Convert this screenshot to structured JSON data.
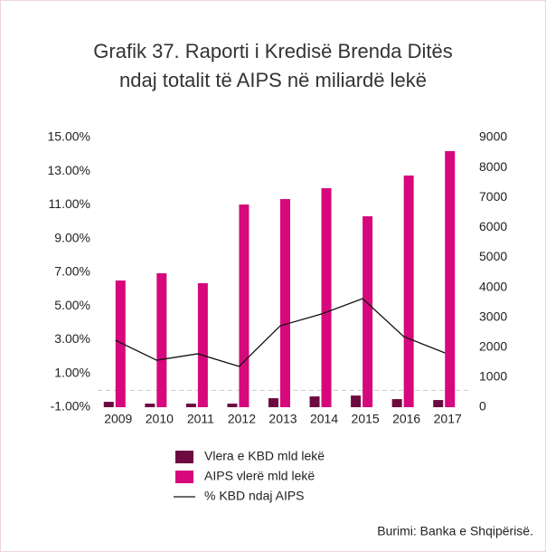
{
  "chart_data": {
    "type": "bar",
    "title": "Grafik 37. Raporti i Kredisë Brenda Ditës",
    "subtitle": "ndaj totalit të AIPS në miliardë lekë",
    "categories": [
      "2009",
      "2010",
      "2011",
      "2012",
      "2013",
      "2014",
      "2015",
      "2016",
      "2017"
    ],
    "series": [
      {
        "name": "Vlera e KBD mld lekë",
        "color": "#6d0a3f",
        "type": "bar",
        "axis": "y2",
        "values": [
          180,
          120,
          120,
          120,
          300,
          360,
          390,
          270,
          240
        ]
      },
      {
        "name": "AIPS vlerë mld lekë",
        "color": "#d6087c",
        "type": "bar",
        "axis": "y2",
        "values": [
          4230,
          4470,
          4140,
          6765,
          6946,
          7310,
          6372,
          7732,
          8547
        ]
      },
      {
        "name": "% KBD ndaj AIPS",
        "color": "#111111",
        "type": "line",
        "values": [
          2.97,
          1.79,
          2.17,
          1.42,
          3.83,
          4.53,
          5.44,
          3.19,
          2.22
        ]
      }
    ],
    "ylim": [
      -1,
      15
    ],
    "yticks": [
      {
        "value": -1,
        "label": "-1.00%"
      },
      {
        "value": 1,
        "label": "1.00%"
      },
      {
        "value": 3,
        "label": "3.00%"
      },
      {
        "value": 5,
        "label": "5.00%"
      },
      {
        "value": 7,
        "label": "7.00%"
      },
      {
        "value": 9,
        "label": "9.00%"
      },
      {
        "value": 11,
        "label": "11.00%"
      },
      {
        "value": 13,
        "label": "13.00%"
      },
      {
        "value": 15,
        "label": "15.00%"
      }
    ],
    "y2lim": [
      0,
      9000
    ],
    "y2ticks": [
      0,
      1000,
      2000,
      3000,
      4000,
      5000,
      6000,
      7000,
      8000,
      9000
    ],
    "legend": "bottom",
    "source": "Burimi: Banka e Shqipërisë."
  }
}
